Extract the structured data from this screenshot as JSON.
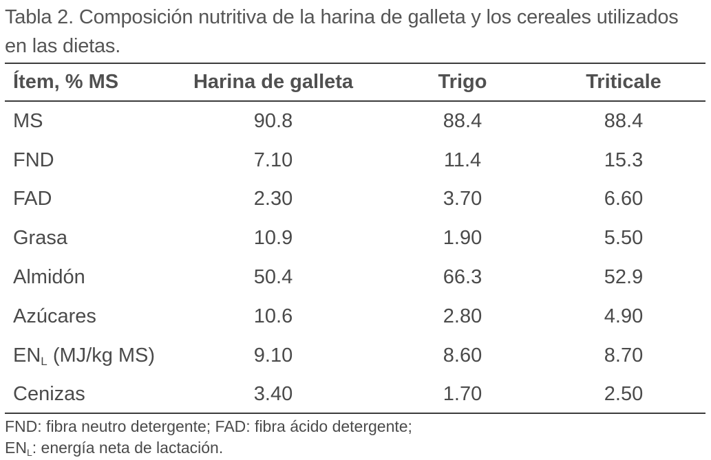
{
  "table": {
    "title": "Tabla 2. Composición nutritiva de la harina de galleta y los cereales utilizados en las dietas.",
    "headers": [
      "Ítem, % MS",
      "Harina de galleta",
      "Trigo",
      "Triticale"
    ],
    "rows": [
      {
        "item": "MS",
        "sub": "",
        "suffix": "",
        "harina": "90.8",
        "trigo": "88.4",
        "triticale": "88.4"
      },
      {
        "item": "FND",
        "sub": "",
        "suffix": "",
        "harina": "7.10",
        "trigo": "11.4",
        "triticale": "15.3"
      },
      {
        "item": "FAD",
        "sub": "",
        "suffix": "",
        "harina": "2.30",
        "trigo": "3.70",
        "triticale": "6.60"
      },
      {
        "item": "Grasa",
        "sub": "",
        "suffix": "",
        "harina": "10.9",
        "trigo": "1.90",
        "triticale": "5.50"
      },
      {
        "item": "Almidón",
        "sub": "",
        "suffix": "",
        "harina": "50.4",
        "trigo": "66.3",
        "triticale": "52.9"
      },
      {
        "item": "Azúcares",
        "sub": "",
        "suffix": "",
        "harina": "10.6",
        "trigo": "2.80",
        "triticale": "4.90"
      },
      {
        "item": "EN",
        "sub": "L",
        "suffix": " (MJ/kg MS)",
        "harina": "9.10",
        "trigo": "8.60",
        "triticale": "8.70"
      },
      {
        "item": "Cenizas",
        "sub": "",
        "suffix": "",
        "harina": "3.40",
        "trigo": "1.70",
        "triticale": "2.50"
      }
    ],
    "footnote": {
      "line1": "FND: fibra neutro detergente; FAD: fibra ácido detergente;",
      "line2_prefix": "EN",
      "line2_sub": "L",
      "line2_rest": ": energía neta de lactación."
    }
  }
}
